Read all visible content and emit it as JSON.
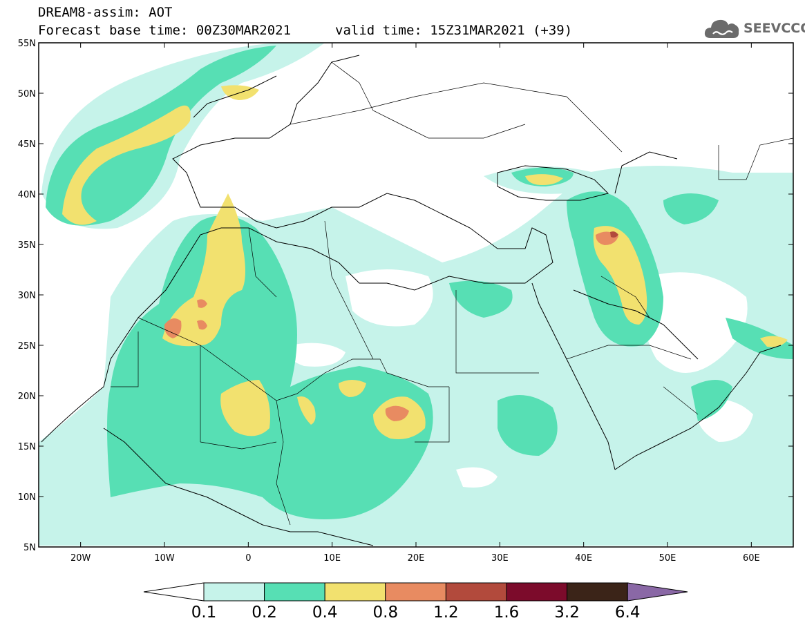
{
  "header": {
    "model_line": "DREAM8-assim: AOT",
    "base_time": "Forecast base time: 00Z30MAR2021",
    "valid_time": "valid time: 15Z31MAR2021 (+39)"
  },
  "logo": {
    "text": "SEEVCCC",
    "icon": "cloud-icon",
    "color": "#6b6b6b"
  },
  "map": {
    "lon_range": [
      -25,
      65
    ],
    "lat_range": [
      5,
      55
    ],
    "lon_ticks": [
      {
        "value": -20,
        "label": "20W"
      },
      {
        "value": -10,
        "label": "10W"
      },
      {
        "value": 0,
        "label": "0"
      },
      {
        "value": 10,
        "label": "10E"
      },
      {
        "value": 20,
        "label": "20E"
      },
      {
        "value": 30,
        "label": "30E"
      },
      {
        "value": 40,
        "label": "40E"
      },
      {
        "value": 50,
        "label": "50E"
      },
      {
        "value": 60,
        "label": "60E"
      }
    ],
    "lat_ticks": [
      {
        "value": 55,
        "label": "55N"
      },
      {
        "value": 50,
        "label": "50N"
      },
      {
        "value": 45,
        "label": "45N"
      },
      {
        "value": 40,
        "label": "40N"
      },
      {
        "value": 35,
        "label": "35N"
      },
      {
        "value": 30,
        "label": "30N"
      },
      {
        "value": 25,
        "label": "25N"
      },
      {
        "value": 20,
        "label": "20N"
      },
      {
        "value": 15,
        "label": "15N"
      },
      {
        "value": 10,
        "label": "10N"
      },
      {
        "value": 5,
        "label": "5N"
      }
    ],
    "grid": false
  },
  "colorbar": {
    "labels": [
      "0.1",
      "0.2",
      "0.4",
      "0.8",
      "1.2",
      "1.6",
      "3.2",
      "6.4"
    ],
    "colors": [
      "#ffffff",
      "#c6f3ea",
      "#57dfb4",
      "#f2e16f",
      "#e88b61",
      "#b24a3c",
      "#7c0b2b",
      "#3b2418",
      "#8a68a6"
    ]
  }
}
